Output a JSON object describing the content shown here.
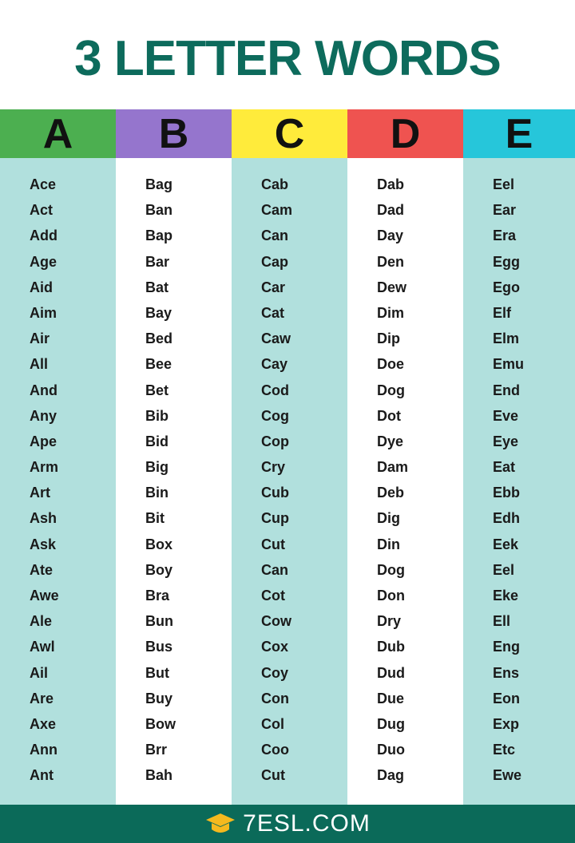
{
  "title": "3 LETTER WORDS",
  "columns": [
    {
      "letter": "A",
      "color": "#4caf50",
      "words": [
        "Ace",
        "Act",
        "Add",
        "Age",
        "Aid",
        "Aim",
        "Air",
        "All",
        "And",
        "Any",
        "Ape",
        "Arm",
        "Art",
        "Ash",
        "Ask",
        "Ate",
        "Awe",
        "Ale",
        "Awl",
        "Ail",
        "Are",
        "Axe",
        "Ann",
        "Ant"
      ]
    },
    {
      "letter": "B",
      "color": "#9575cd",
      "words": [
        "Bag",
        "Ban",
        "Bap",
        "Bar",
        "Bat",
        "Bay",
        "Bed",
        "Bee",
        "Bet",
        "Bib",
        "Bid",
        "Big",
        "Bin",
        "Bit",
        "Box",
        "Boy",
        "Bra",
        "Bun",
        "Bus",
        "But",
        "Buy",
        "Bow",
        "Brr",
        "Bah"
      ]
    },
    {
      "letter": "C",
      "color": "#ffeb3b",
      "words": [
        "Cab",
        "Cam",
        "Can",
        "Cap",
        "Car",
        "Cat",
        "Caw",
        "Cay",
        "Cod",
        "Cog",
        "Cop",
        "Cry",
        "Cub",
        "Cup",
        "Cut",
        "Can",
        "Cot",
        "Cow",
        "Cox",
        "Coy",
        "Con",
        "Col",
        "Coo",
        "Cut"
      ]
    },
    {
      "letter": "D",
      "color": "#ef5350",
      "words": [
        "Dab",
        "Dad",
        "Day",
        "Den",
        "Dew",
        "Dim",
        "Dip",
        "Doe",
        "Dog",
        "Dot",
        "Dye",
        "Dam",
        "Deb",
        "Dig",
        "Din",
        "Dog",
        "Don",
        "Dry",
        "Dub",
        "Dud",
        "Due",
        "Dug",
        "Duo",
        "Dag"
      ]
    },
    {
      "letter": "E",
      "color": "#26c6da",
      "words": [
        "Eel",
        "Ear",
        "Era",
        "Egg",
        "Ego",
        "Elf",
        "Elm",
        "Emu",
        "End",
        "Eve",
        "Eye",
        "Eat",
        "Ebb",
        "Edh",
        "Eek",
        "Eel",
        "Eke",
        "Ell",
        "Eng",
        "Ens",
        "Eon",
        "Exp",
        "Etc",
        "Ewe"
      ]
    }
  ],
  "footer": {
    "logo_text": "7ESL.COM",
    "logo_icon": "graduation-cap-icon"
  }
}
